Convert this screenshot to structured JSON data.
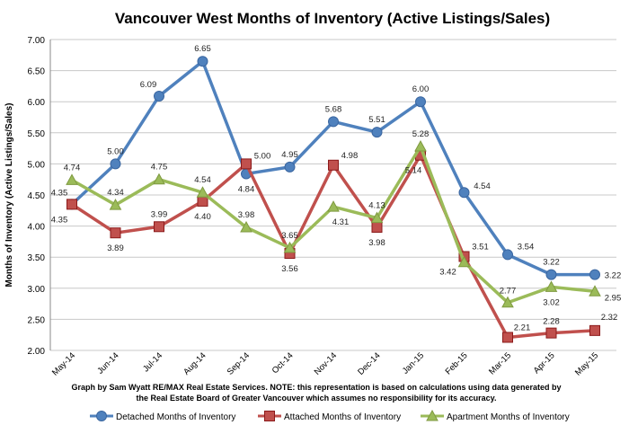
{
  "chart_data": {
    "type": "line",
    "title": "Vancouver West  Months of Inventory (Active Listings/Sales)",
    "xlabel": "",
    "ylabel": "Months of Inventory (Active Listings/Sales)",
    "ylim": [
      2.0,
      7.0
    ],
    "yticks": [
      "2.00",
      "2.50",
      "3.00",
      "3.50",
      "4.00",
      "4.50",
      "5.00",
      "5.50",
      "6.00",
      "6.50",
      "7.00"
    ],
    "grid": true,
    "legend": "bottom",
    "categories": [
      "May-14",
      "Jun-14",
      "Jul-14",
      "Aug-14",
      "Sep-14",
      "Oct-14",
      "Nov-14",
      "Dec-14",
      "Jan-15",
      "Feb-15",
      "Mar-15",
      "Apr-15",
      "May-15"
    ],
    "series": [
      {
        "name": "Detached Months of Inventory",
        "color": "#4f81bd",
        "marker": "circle",
        "values": [
          4.35,
          5.0,
          6.09,
          6.65,
          4.84,
          4.95,
          5.68,
          5.51,
          6.0,
          4.54,
          3.54,
          3.22,
          3.22
        ]
      },
      {
        "name": "Attached Months of Inventory",
        "color": "#c0504d",
        "marker": "square",
        "values": [
          4.35,
          3.89,
          3.99,
          4.4,
          5.0,
          3.56,
          4.98,
          3.98,
          5.14,
          3.51,
          2.21,
          2.28,
          2.32
        ]
      },
      {
        "name": "Apartment Months of Inventory",
        "color": "#9bbb59",
        "marker": "triangle",
        "values": [
          4.74,
          4.34,
          4.75,
          4.54,
          3.98,
          3.65,
          4.31,
          4.13,
          5.28,
          3.42,
          2.77,
          3.02,
          2.95
        ]
      }
    ],
    "note": [
      "Graph by Sam Wyatt RE/MAX Real Estate Services.   NOTE: this representation is based on calculations using data generated by",
      "the Real Estate Board of Greater Vancouver which assumes no responsibility for its accuracy."
    ]
  }
}
